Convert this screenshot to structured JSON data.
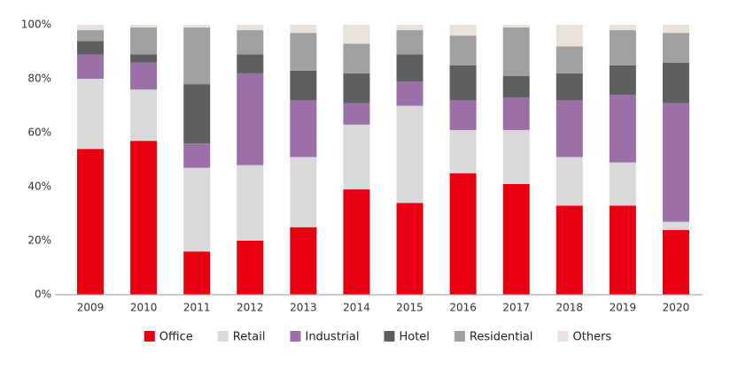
{
  "chart_data": {
    "type": "stacked_bar",
    "categories": [
      "2009",
      "2010",
      "2011",
      "2012",
      "2013",
      "2014",
      "2015",
      "2016",
      "2017",
      "2018",
      "2019",
      "2020"
    ],
    "series": [
      {
        "name": "Office",
        "color": "#e60012",
        "values": [
          54,
          57,
          16,
          20,
          25,
          39,
          34,
          45,
          41,
          33,
          33,
          24
        ]
      },
      {
        "name": "Retail",
        "color": "#d9d9d9",
        "values": [
          26,
          19,
          31,
          28,
          26,
          24,
          36,
          16,
          20,
          18,
          16,
          3
        ]
      },
      {
        "name": "Industrial",
        "color": "#9b6fa8",
        "values": [
          9,
          10,
          9,
          34,
          21,
          8,
          9,
          11,
          12,
          21,
          25,
          44
        ]
      },
      {
        "name": "Hotel",
        "color": "#5f5f61",
        "values": [
          5,
          3,
          22,
          7,
          11,
          11,
          10,
          13,
          8,
          10,
          11,
          15
        ]
      },
      {
        "name": "Residential",
        "color": "#a0a0a2",
        "values": [
          4,
          10,
          21,
          9,
          14,
          11,
          9,
          11,
          18,
          10,
          13,
          11
        ]
      },
      {
        "name": "Others",
        "color": "#e8e2da",
        "values": [
          2,
          1,
          1,
          2,
          3,
          7,
          2,
          4,
          1,
          8,
          2,
          3
        ]
      }
    ],
    "ylim": [
      0,
      100
    ],
    "yticks": [
      {
        "value": 0,
        "label": "0%"
      },
      {
        "value": 20,
        "label": "20%"
      },
      {
        "value": 40,
        "label": "40%"
      },
      {
        "value": 60,
        "label": "60%"
      },
      {
        "value": 80,
        "label": "80%"
      },
      {
        "value": 100,
        "label": "100%"
      }
    ],
    "grid": false,
    "legend": "bottom"
  }
}
